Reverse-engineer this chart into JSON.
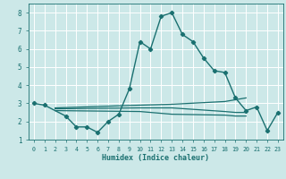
{
  "xlabel": "Humidex (Indice chaleur)",
  "x_main": [
    0,
    1,
    3,
    4,
    5,
    6,
    7,
    8,
    9,
    10,
    11,
    12,
    13,
    14,
    15,
    16,
    17,
    18,
    19,
    20,
    21,
    22,
    23
  ],
  "y_main": [
    3.0,
    2.9,
    2.3,
    1.7,
    1.7,
    1.4,
    2.0,
    2.4,
    3.8,
    6.4,
    6.0,
    7.8,
    8.0,
    6.8,
    6.4,
    5.5,
    4.8,
    4.7,
    3.3,
    2.6,
    2.8,
    1.5,
    2.5
  ],
  "flat_lines": [
    {
      "x": [
        2,
        10,
        13,
        18,
        19,
        20
      ],
      "y": [
        2.75,
        2.9,
        2.95,
        3.1,
        3.2,
        3.3
      ]
    },
    {
      "x": [
        2,
        10,
        13,
        18,
        19,
        20
      ],
      "y": [
        2.7,
        2.75,
        2.75,
        2.55,
        2.5,
        2.5
      ]
    },
    {
      "x": [
        2,
        10,
        13,
        18,
        19,
        20
      ],
      "y": [
        2.6,
        2.55,
        2.4,
        2.35,
        2.3,
        2.3
      ]
    }
  ],
  "ylim": [
    1,
    8.5
  ],
  "xlim": [
    -0.5,
    23.5
  ],
  "yticks": [
    1,
    2,
    3,
    4,
    5,
    6,
    7,
    8
  ],
  "xticks": [
    0,
    1,
    2,
    3,
    4,
    5,
    6,
    7,
    8,
    9,
    10,
    11,
    12,
    13,
    14,
    15,
    16,
    17,
    18,
    19,
    20,
    21,
    22,
    23
  ],
  "bg_color": "#cce8e8",
  "grid_color": "#ffffff",
  "line_color": "#1a7070"
}
